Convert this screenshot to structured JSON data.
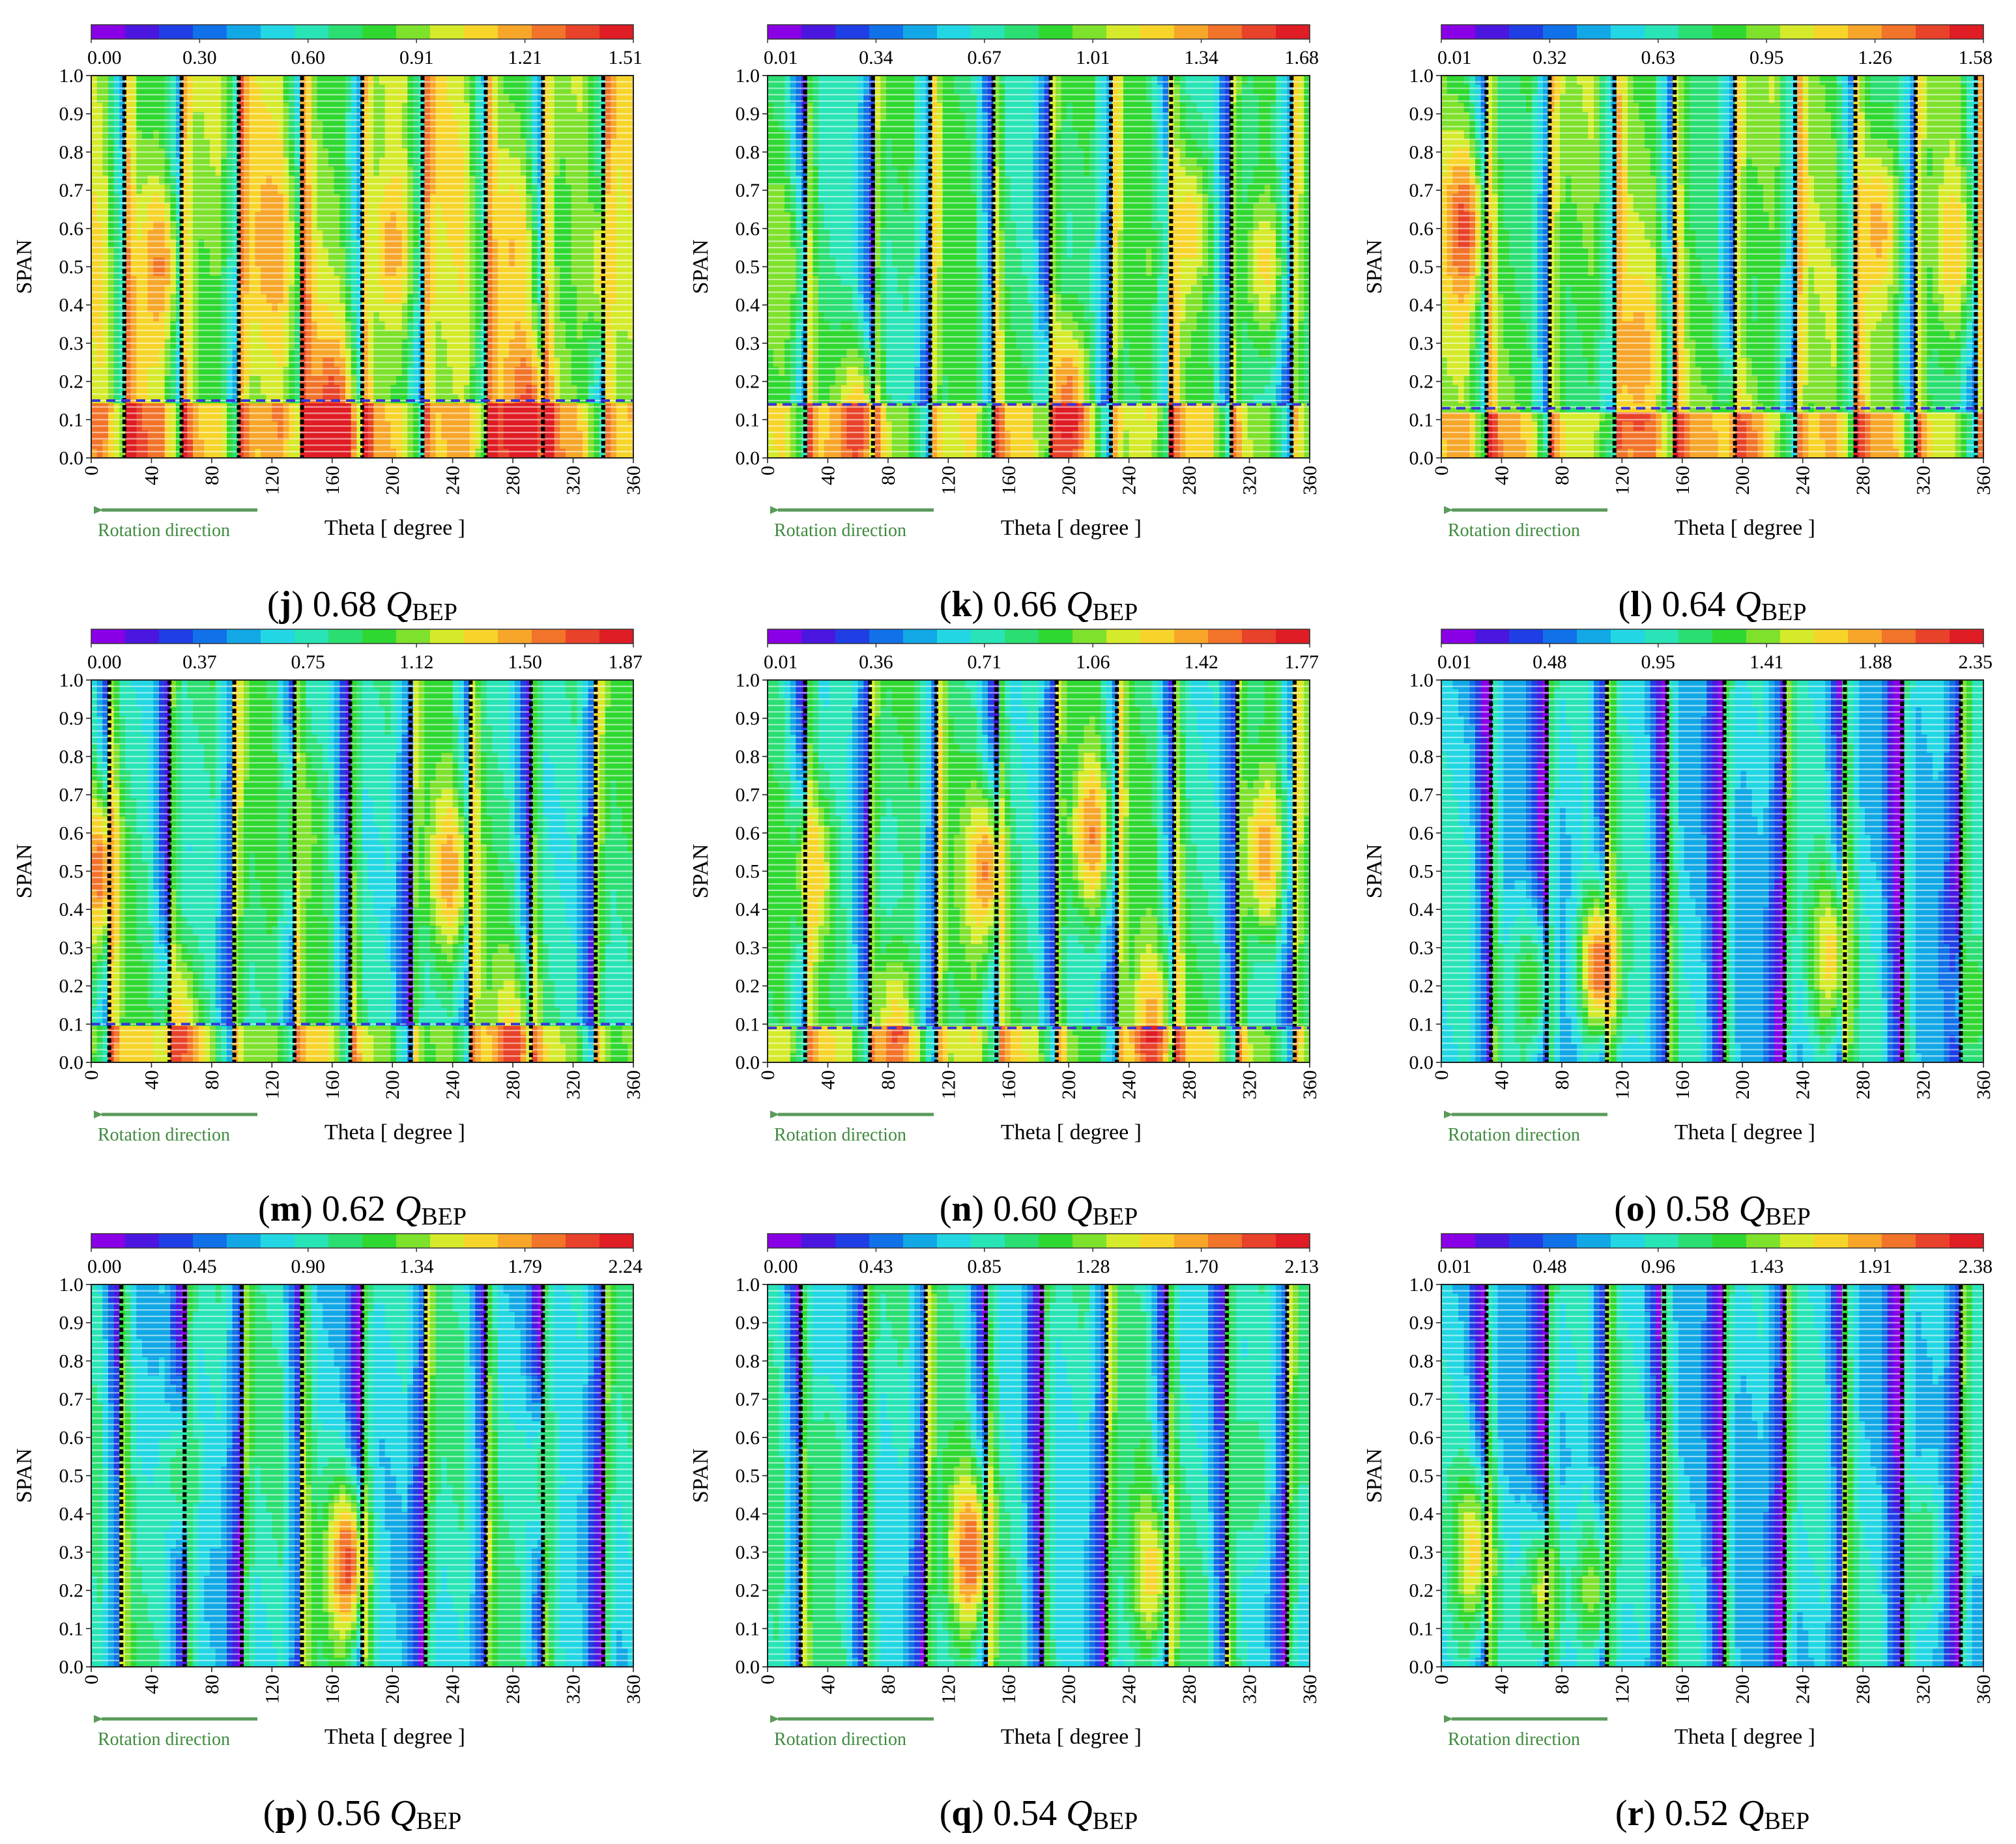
{
  "colormap": [
    "#8a00e6",
    "#4b17e0",
    "#1f3ee6",
    "#1171e8",
    "#12a8e6",
    "#22d7e3",
    "#28e4b6",
    "#2ade72",
    "#2fd831",
    "#7ee12c",
    "#d5ea2a",
    "#f7d42a",
    "#f7a62a",
    "#f2732a",
    "#e9422a",
    "#e01c24"
  ],
  "colors": {
    "blade_line": "#000000",
    "dashed_line": "#3a35d8",
    "rotation_arrow": "#5a9a5a"
  },
  "chart_data": [
    {
      "type": "heatmap",
      "letter": "j",
      "flow": "0.68",
      "q_symbol": "Q",
      "subscript": "BEP",
      "colorbar_ticks": [
        "0.00",
        "0.30",
        "0.60",
        "0.91",
        "1.21",
        "1.51"
      ],
      "xlabel": "Theta [ degree ]",
      "ylabel": "SPAN",
      "x_ticks": [
        "0",
        "40",
        "80",
        "120",
        "160",
        "200",
        "240",
        "280",
        "320",
        "360"
      ],
      "y_ticks": [
        "0.0",
        "0.1",
        "0.2",
        "0.3",
        "0.4",
        "0.5",
        "0.6",
        "0.7",
        "0.8",
        "0.9",
        "1.0"
      ],
      "xlim": [
        0,
        360
      ],
      "ylim": [
        0,
        1
      ],
      "rotation_label": "Rotation direction",
      "dashed_line_span": 0.15,
      "blade_positions_deg": [
        22,
        60,
        98,
        140,
        180,
        220,
        262,
        300,
        340
      ],
      "base_level": 0.62,
      "hotspots": [
        [
          45,
          0.5,
          0.82
        ],
        [
          120,
          0.55,
          0.8
        ],
        [
          200,
          0.55,
          0.78
        ],
        [
          280,
          0.55,
          0.75
        ],
        [
          160,
          0.08,
          0.95
        ],
        [
          290,
          0.12,
          0.9
        ],
        [
          340,
          0.5,
          0.7
        ]
      ]
    },
    {
      "type": "heatmap",
      "letter": "k",
      "flow": "0.66",
      "q_symbol": "Q",
      "subscript": "BEP",
      "colorbar_ticks": [
        "0.01",
        "0.34",
        "0.67",
        "1.01",
        "1.34",
        "1.68"
      ],
      "xlabel": "Theta [ degree ]",
      "ylabel": "SPAN",
      "x_ticks": [
        "0",
        "40",
        "80",
        "120",
        "160",
        "200",
        "240",
        "280",
        "320",
        "360"
      ],
      "y_ticks": [
        "0.0",
        "0.1",
        "0.2",
        "0.3",
        "0.4",
        "0.5",
        "0.6",
        "0.7",
        "0.8",
        "0.9",
        "1.0"
      ],
      "xlim": [
        0,
        360
      ],
      "ylim": [
        0,
        1
      ],
      "rotation_label": "Rotation direction",
      "dashed_line_span": 0.14,
      "blade_positions_deg": [
        25,
        70,
        108,
        150,
        188,
        228,
        268,
        308,
        348
      ],
      "base_level": 0.48,
      "hotspots": [
        [
          200,
          0.15,
          0.85
        ],
        [
          60,
          0.1,
          0.75
        ],
        [
          280,
          0.6,
          0.72
        ],
        [
          330,
          0.5,
          0.7
        ],
        [
          10,
          0.5,
          0.62
        ]
      ]
    },
    {
      "type": "heatmap",
      "letter": "l",
      "flow": "0.64",
      "q_symbol": "Q",
      "subscript": "BEP",
      "colorbar_ticks": [
        "0.01",
        "0.32",
        "0.63",
        "0.95",
        "1.26",
        "1.58"
      ],
      "xlabel": "Theta [ degree ]",
      "ylabel": "SPAN",
      "x_ticks": [
        "0",
        "40",
        "80",
        "120",
        "160",
        "200",
        "240",
        "280",
        "320",
        "360"
      ],
      "y_ticks": [
        "0.0",
        "0.1",
        "0.2",
        "0.3",
        "0.4",
        "0.5",
        "0.6",
        "0.7",
        "0.8",
        "0.9",
        "1.0"
      ],
      "xlim": [
        0,
        360
      ],
      "ylim": [
        0,
        1
      ],
      "rotation_label": "Rotation direction",
      "dashed_line_span": 0.13,
      "blade_positions_deg": [
        30,
        72,
        115,
        155,
        195,
        235,
        275,
        315,
        355
      ],
      "base_level": 0.55,
      "hotspots": [
        [
          15,
          0.6,
          0.9
        ],
        [
          130,
          0.25,
          0.8
        ],
        [
          290,
          0.6,
          0.78
        ],
        [
          340,
          0.55,
          0.75
        ],
        [
          200,
          0.05,
          0.7
        ]
      ]
    },
    {
      "type": "heatmap",
      "letter": "m",
      "flow": "0.62",
      "q_symbol": "Q",
      "subscript": "BEP",
      "colorbar_ticks": [
        "0.00",
        "0.37",
        "0.75",
        "1.12",
        "1.50",
        "1.87"
      ],
      "xlabel": "Theta [ degree ]",
      "ylabel": "SPAN",
      "x_ticks": [
        "0",
        "40",
        "80",
        "120",
        "160",
        "200",
        "240",
        "280",
        "320",
        "360"
      ],
      "y_ticks": [
        "0.0",
        "0.1",
        "0.2",
        "0.3",
        "0.4",
        "0.5",
        "0.6",
        "0.7",
        "0.8",
        "0.9",
        "1.0"
      ],
      "xlim": [
        0,
        360
      ],
      "ylim": [
        0,
        1
      ],
      "rotation_label": "Rotation direction",
      "dashed_line_span": 0.1,
      "blade_positions_deg": [
        12,
        52,
        95,
        135,
        172,
        212,
        252,
        292,
        335
      ],
      "base_level": 0.45,
      "hotspots": [
        [
          5,
          0.5,
          0.85
        ],
        [
          238,
          0.5,
          0.8
        ],
        [
          60,
          0.08,
          0.72
        ],
        [
          280,
          0.05,
          0.72
        ],
        [
          140,
          0.6,
          0.6
        ]
      ]
    },
    {
      "type": "heatmap",
      "letter": "n",
      "flow": "0.60",
      "q_symbol": "Q",
      "subscript": "BEP",
      "colorbar_ticks": [
        "0.01",
        "0.36",
        "0.71",
        "1.06",
        "1.42",
        "1.77"
      ],
      "xlabel": "Theta [ degree ]",
      "ylabel": "SPAN",
      "x_ticks": [
        "0",
        "40",
        "80",
        "120",
        "160",
        "200",
        "240",
        "280",
        "320",
        "360"
      ],
      "y_ticks": [
        "0.0",
        "0.1",
        "0.2",
        "0.3",
        "0.4",
        "0.5",
        "0.6",
        "0.7",
        "0.8",
        "0.9",
        "1.0"
      ],
      "xlim": [
        0,
        360
      ],
      "ylim": [
        0,
        1
      ],
      "rotation_label": "Rotation direction",
      "dashed_line_span": 0.09,
      "blade_positions_deg": [
        25,
        68,
        112,
        152,
        192,
        232,
        270,
        312,
        350
      ],
      "base_level": 0.45,
      "hotspots": [
        [
          215,
          0.6,
          0.82
        ],
        [
          330,
          0.55,
          0.8
        ],
        [
          145,
          0.5,
          0.82
        ],
        [
          30,
          0.5,
          0.75
        ],
        [
          255,
          0.1,
          0.78
        ],
        [
          85,
          0.1,
          0.72
        ]
      ]
    },
    {
      "type": "heatmap",
      "letter": "o",
      "flow": "0.58",
      "q_symbol": "Q",
      "subscript": "BEP",
      "colorbar_ticks": [
        "0.01",
        "0.48",
        "0.95",
        "1.41",
        "1.88",
        "2.35"
      ],
      "xlabel": "Theta [ degree ]",
      "ylabel": "SPAN",
      "x_ticks": [
        "0",
        "40",
        "80",
        "120",
        "160",
        "200",
        "240",
        "280",
        "320",
        "360"
      ],
      "y_ticks": [
        "0.0",
        "0.1",
        "0.2",
        "0.3",
        "0.4",
        "0.5",
        "0.6",
        "0.7",
        "0.8",
        "0.9",
        "1.0"
      ],
      "xlim": [
        0,
        360
      ],
      "ylim": [
        0,
        1
      ],
      "rotation_label": "Rotation direction",
      "dashed_line_span": null,
      "blade_positions_deg": [
        33,
        70,
        110,
        150,
        188,
        228,
        268,
        306,
        345
      ],
      "base_level": 0.33,
      "hotspots": [
        [
          105,
          0.25,
          0.88
        ],
        [
          258,
          0.28,
          0.72
        ],
        [
          60,
          0.2,
          0.55
        ],
        [
          355,
          0.15,
          0.55
        ]
      ]
    },
    {
      "type": "heatmap",
      "letter": "p",
      "flow": "0.56",
      "q_symbol": "Q",
      "subscript": "BEP",
      "colorbar_ticks": [
        "0.00",
        "0.45",
        "0.90",
        "1.34",
        "1.79",
        "2.24"
      ],
      "xlabel": "Theta [ degree ]",
      "ylabel": "SPAN",
      "x_ticks": [
        "0",
        "40",
        "80",
        "120",
        "160",
        "200",
        "240",
        "280",
        "320",
        "360"
      ],
      "y_ticks": [
        "0.0",
        "0.1",
        "0.2",
        "0.3",
        "0.4",
        "0.5",
        "0.6",
        "0.7",
        "0.8",
        "0.9",
        "1.0"
      ],
      "xlim": [
        0,
        360
      ],
      "ylim": [
        0,
        1
      ],
      "rotation_label": "Rotation direction",
      "dashed_line_span": null,
      "blade_positions_deg": [
        20,
        62,
        100,
        140,
        180,
        222,
        262,
        300,
        340
      ],
      "base_level": 0.38,
      "hotspots": [
        [
          170,
          0.27,
          0.9
        ],
        [
          60,
          0.5,
          0.5
        ],
        [
          300,
          0.5,
          0.48
        ]
      ]
    },
    {
      "type": "heatmap",
      "letter": "q",
      "flow": "0.54",
      "q_symbol": "Q",
      "subscript": "BEP",
      "colorbar_ticks": [
        "0.00",
        "0.43",
        "0.85",
        "1.28",
        "1.70",
        "2.13"
      ],
      "xlabel": "Theta [ degree ]",
      "ylabel": "SPAN",
      "x_ticks": [
        "0",
        "40",
        "80",
        "120",
        "160",
        "200",
        "240",
        "280",
        "320",
        "360"
      ],
      "y_ticks": [
        "0.0",
        "0.1",
        "0.2",
        "0.3",
        "0.4",
        "0.5",
        "0.6",
        "0.7",
        "0.8",
        "0.9",
        "1.0"
      ],
      "xlim": [
        0,
        360
      ],
      "ylim": [
        0,
        1
      ],
      "rotation_label": "Rotation direction",
      "dashed_line_span": null,
      "blade_positions_deg": [
        22,
        65,
        105,
        145,
        182,
        225,
        265,
        305,
        345
      ],
      "base_level": 0.4,
      "hotspots": [
        [
          135,
          0.3,
          0.88
        ],
        [
          255,
          0.25,
          0.72
        ],
        [
          40,
          0.5,
          0.5
        ],
        [
          320,
          0.5,
          0.5
        ]
      ]
    },
    {
      "type": "heatmap",
      "letter": "r",
      "flow": "0.52",
      "q_symbol": "Q",
      "subscript": "BEP",
      "colorbar_ticks": [
        "0.01",
        "0.48",
        "0.96",
        "1.43",
        "1.91",
        "2.38"
      ],
      "xlabel": "Theta [ degree ]",
      "ylabel": "SPAN",
      "x_ticks": [
        "0",
        "40",
        "80",
        "120",
        "160",
        "200",
        "240",
        "280",
        "320",
        "360"
      ],
      "y_ticks": [
        "0.0",
        "0.1",
        "0.2",
        "0.3",
        "0.4",
        "0.5",
        "0.6",
        "0.7",
        "0.8",
        "0.9",
        "1.0"
      ],
      "xlim": [
        0,
        360
      ],
      "ylim": [
        0,
        1
      ],
      "rotation_label": "Rotation direction",
      "dashed_line_span": null,
      "blade_positions_deg": [
        30,
        70,
        110,
        148,
        188,
        228,
        268,
        306,
        345
      ],
      "base_level": 0.33,
      "hotspots": [
        [
          22,
          0.3,
          0.72
        ],
        [
          68,
          0.2,
          0.65
        ],
        [
          100,
          0.2,
          0.6
        ],
        [
          320,
          0.3,
          0.5
        ]
      ]
    }
  ]
}
